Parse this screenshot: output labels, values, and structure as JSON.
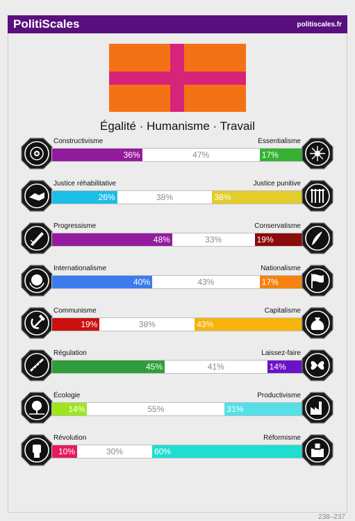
{
  "header": {
    "brand": "PolitiScales",
    "site": "politiscales.fr"
  },
  "flag": {
    "background": "#f47216",
    "cross": "#d6247a"
  },
  "slogan": "Égalité · Humanisme · Travail",
  "axes": [
    {
      "left_label": "Constructivisme",
      "right_label": "Essentialisme",
      "left_pct": "36%",
      "mid_pct": "47%",
      "right_pct": "17%",
      "left_val": 36,
      "mid_val": 47,
      "right_val": 17,
      "left_color": "#931b9e",
      "right_color": "#35b235",
      "left_icon": "eye-in-spiral-icon",
      "right_icon": "dna-star-icon"
    },
    {
      "left_label": "Justice réhabilitative",
      "right_label": "Justice punitive",
      "left_pct": "26%",
      "mid_pct": "38%",
      "right_pct": "36%",
      "left_val": 26,
      "mid_val": 38,
      "right_val": 36,
      "left_color": "#1bbfe6",
      "right_color": "#e3cd2a",
      "left_icon": "handshake-icon",
      "right_icon": "prison-bars-icon"
    },
    {
      "left_label": "Progressisme",
      "right_label": "Conservatisme",
      "left_pct": "48%",
      "mid_pct": "33%",
      "right_pct": "19%",
      "left_val": 48,
      "mid_val": 33,
      "right_val": 19,
      "left_color": "#931b9e",
      "right_color": "#8b0a0a",
      "left_icon": "rocket-icon",
      "right_icon": "quill-icon"
    },
    {
      "left_label": "Internationalisme",
      "right_label": "Nationalisme",
      "left_pct": "40%",
      "mid_pct": "43%",
      "right_pct": "17%",
      "left_val": 40,
      "mid_val": 43,
      "right_val": 17,
      "left_color": "#3c7bec",
      "right_color": "#f6820f",
      "left_icon": "globe-wreath-icon",
      "right_icon": "flag-icon"
    },
    {
      "left_label": "Communisme",
      "right_label": "Capitalisme",
      "left_pct": "19%",
      "mid_pct": "38%",
      "right_pct": "43%",
      "left_val": 19,
      "mid_val": 38,
      "right_val": 43,
      "left_color": "#cc0f0f",
      "right_color": "#f6b40c",
      "left_icon": "hammer-sickle-icon",
      "right_icon": "money-bag-icon"
    },
    {
      "left_label": "Régulation",
      "right_label": "Laissez-faire",
      "left_pct": "45%",
      "mid_pct": "41%",
      "right_pct": "14%",
      "left_val": 45,
      "mid_val": 41,
      "right_val": 14,
      "left_color": "#2e9e3a",
      "right_color": "#6a12c9",
      "left_icon": "scales-ruler-icon",
      "right_icon": "butterfly-icon"
    },
    {
      "left_label": "Écologie",
      "right_label": "Productivisme",
      "left_pct": "14%",
      "mid_pct": "55%",
      "right_pct": "31%",
      "left_val": 14,
      "mid_val": 55,
      "right_val": 31,
      "left_color": "#9ee51b",
      "right_color": "#55dfe8",
      "left_icon": "tree-landscape-icon",
      "right_icon": "factory-icon"
    },
    {
      "left_label": "Révolution",
      "right_label": "Réformisme",
      "left_pct": "10%",
      "mid_pct": "30%",
      "right_pct": "60%",
      "left_val": 10,
      "mid_val": 30,
      "right_val": 60,
      "left_color": "#e51b60",
      "right_color": "#1ddfd0",
      "left_icon": "fist-icon",
      "right_icon": "ballot-box-icon"
    }
  ],
  "footer": "238–237"
}
